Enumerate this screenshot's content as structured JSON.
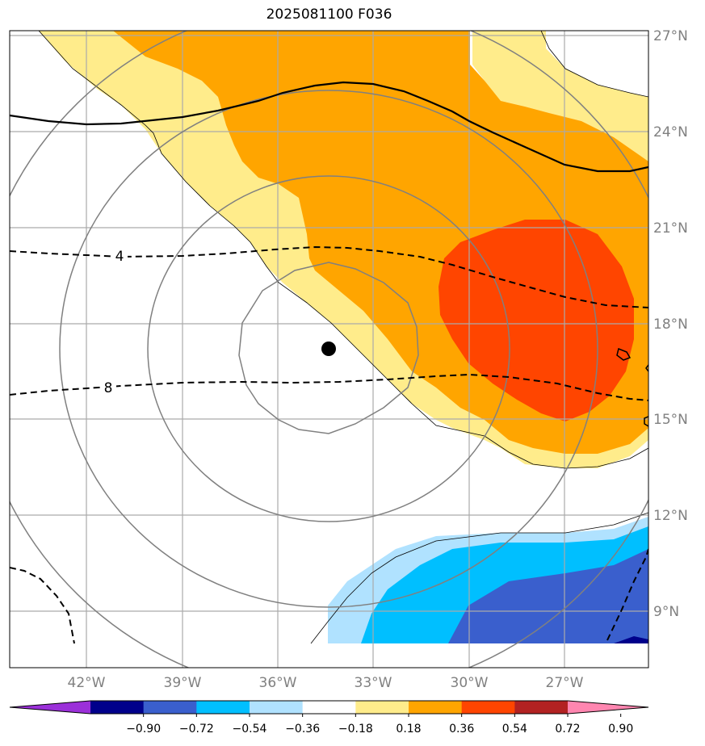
{
  "title": "2025081100 F036",
  "map": {
    "lat_labels": [
      "27°N",
      "24°N",
      "21°N",
      "18°N",
      "15°N",
      "12°N",
      "9°N"
    ],
    "lon_labels": [
      "42°W",
      "39°W",
      "36°W",
      "33°W",
      "30°W",
      "27°W"
    ],
    "contour_labels": [
      "4",
      "8"
    ],
    "storm_center": {
      "lon": -34.5,
      "lat": 17.2
    }
  },
  "colorbar": {
    "labels": [
      "−0.90",
      "−0.72",
      "−0.54",
      "−0.36",
      "−0.18",
      "0.18",
      "0.36",
      "0.54",
      "0.72",
      "0.90"
    ],
    "colors": [
      "#9b30d9",
      "#00008b",
      "#3a5fcd",
      "#00bfff",
      "#b0e2ff",
      "#ffffff",
      "#ffec8b",
      "#ffa500",
      "#ff4500",
      "#b22222",
      "#ff86b0"
    ]
  }
}
